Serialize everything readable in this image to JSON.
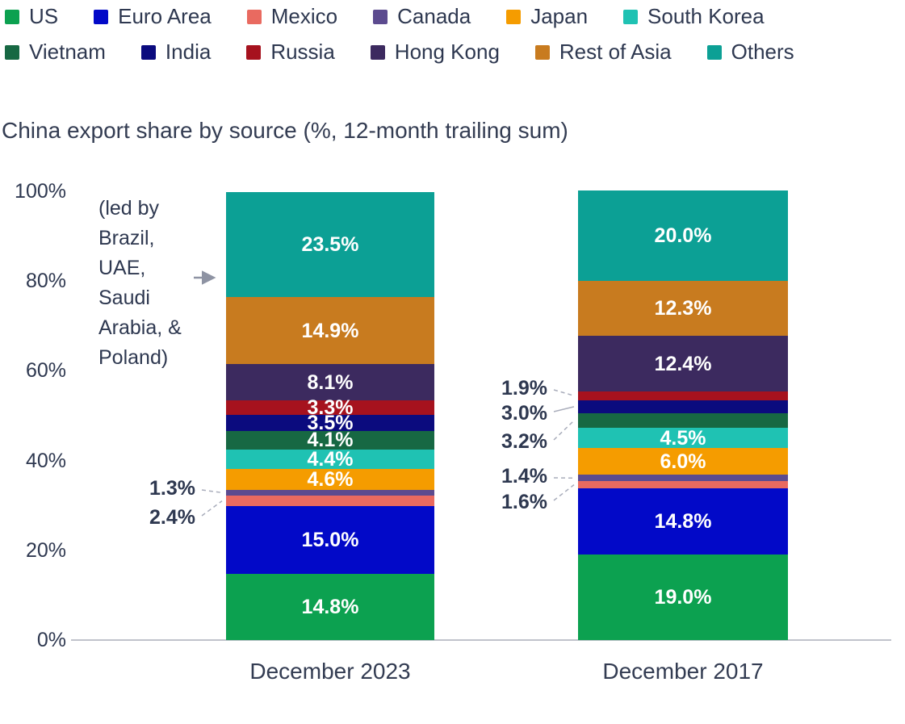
{
  "title": "China export share by source (%, 12-month trailing sum)",
  "chart_data": {
    "type": "stacked-bar",
    "title": "China export share by source (%, 12-month trailing sum)",
    "categories": [
      "December 2023",
      "December 2017"
    ],
    "series": [
      {
        "name": "US",
        "color": "#0ca150",
        "values": [
          14.8,
          19.0
        ]
      },
      {
        "name": "Euro Area",
        "color": "#0209c8",
        "values": [
          15.0,
          14.8
        ]
      },
      {
        "name": "Mexico",
        "color": "#e96a60",
        "values": [
          2.4,
          1.6
        ]
      },
      {
        "name": "Canada",
        "color": "#5c4b8f",
        "values": [
          1.3,
          1.4
        ]
      },
      {
        "name": "Japan",
        "color": "#f59c00",
        "values": [
          4.6,
          6.0
        ]
      },
      {
        "name": "South Korea",
        "color": "#1fc2b3",
        "values": [
          4.4,
          4.5
        ]
      },
      {
        "name": "Vietnam",
        "color": "#176843",
        "values": [
          4.1,
          3.2
        ]
      },
      {
        "name": "India",
        "color": "#0b0b7e",
        "values": [
          3.5,
          3.0
        ]
      },
      {
        "name": "Russia",
        "color": "#a6121e",
        "values": [
          3.3,
          1.9
        ]
      },
      {
        "name": "Hong Kong",
        "color": "#3c2a5f",
        "values": [
          8.1,
          12.4
        ]
      },
      {
        "name": "Rest of Asia",
        "color": "#c87b1f",
        "values": [
          14.9,
          12.3
        ]
      },
      {
        "name": "Others",
        "color": "#0ca095",
        "values": [
          23.5,
          20.0
        ]
      }
    ],
    "value_suffix": "%",
    "outside_labels": [
      [
        "Mexico",
        "Canada"
      ],
      [
        "Mexico",
        "Canada",
        "Vietnam",
        "India",
        "Russia"
      ]
    ],
    "yticks": [
      "0%",
      "20%",
      "40%",
      "60%",
      "80%",
      "100%"
    ],
    "ylim": [
      0,
      100
    ],
    "legend_position": "top",
    "grid": false,
    "annotation": {
      "text": "(led by Brazil, UAE, Saudi Arabia, & Poland)",
      "lines": [
        "(led by",
        "Brazil,",
        "UAE,",
        "Saudi",
        "Arabia, &",
        "Poland)"
      ],
      "points_to": "Others (December 2023)"
    }
  }
}
